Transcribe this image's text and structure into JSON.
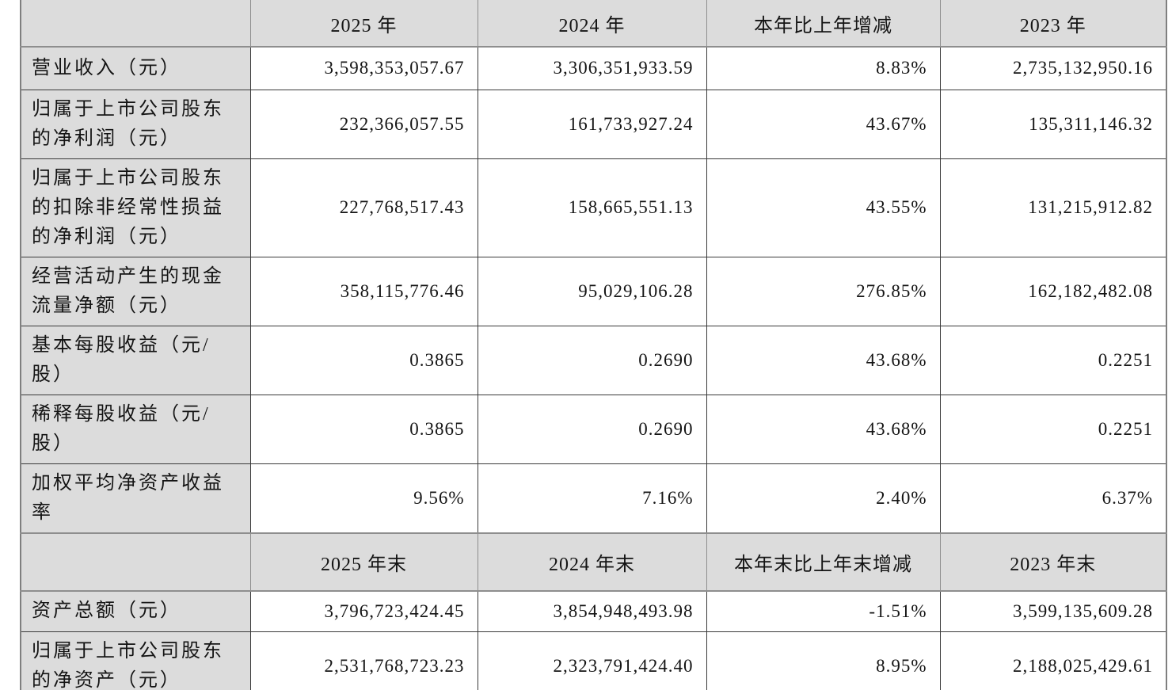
{
  "table": {
    "title": "financial-key-indicators",
    "sections": [
      {
        "header": {
          "corner": "",
          "cols": [
            "2025 年",
            "2024 年",
            "本年比上年增减",
            "2023 年"
          ]
        },
        "rows": [
          {
            "label": "营业收入（元）",
            "values": [
              "3,598,353,057.67",
              "3,306,351,933.59",
              "8.83%",
              "2,735,132,950.16"
            ]
          },
          {
            "label": "归属于上市公司股东的净利润（元）",
            "values": [
              "232,366,057.55",
              "161,733,927.24",
              "43.67%",
              "135,311,146.32"
            ]
          },
          {
            "label": "归属于上市公司股东的扣除非经常性损益的净利润（元）",
            "values": [
              "227,768,517.43",
              "158,665,551.13",
              "43.55%",
              "131,215,912.82"
            ]
          },
          {
            "label": "经营活动产生的现金流量净额（元）",
            "values": [
              "358,115,776.46",
              "95,029,106.28",
              "276.85%",
              "162,182,482.08"
            ]
          },
          {
            "label": "基本每股收益（元/股）",
            "values": [
              "0.3865",
              "0.2690",
              "43.68%",
              "0.2251"
            ]
          },
          {
            "label": "稀释每股收益（元/股）",
            "values": [
              "0.3865",
              "0.2690",
              "43.68%",
              "0.2251"
            ]
          },
          {
            "label": "加权平均净资产收益率",
            "values": [
              "9.56%",
              "7.16%",
              "2.40%",
              "6.37%"
            ]
          }
        ]
      },
      {
        "header": {
          "corner": "",
          "cols": [
            "2025 年末",
            "2024 年末",
            "本年末比上年末增减",
            "2023 年末"
          ]
        },
        "rows": [
          {
            "label": "资产总额（元）",
            "values": [
              "3,796,723,424.45",
              "3,854,948,493.98",
              "-1.51%",
              "3,599,135,609.28"
            ]
          },
          {
            "label": "归属于上市公司股东的净资产（元）",
            "values": [
              "2,531,768,723.23",
              "2,323,791,424.40",
              "8.95%",
              "2,188,025,429.61"
            ]
          }
        ]
      }
    ],
    "colors": {
      "header_bg": "#dcdcdc",
      "label_bg": "#dcdcdc",
      "cell_bg": "#ffffff",
      "grid_line": "#3a3a3a",
      "band_line": "#8e8e8e",
      "text": "#141414"
    }
  }
}
